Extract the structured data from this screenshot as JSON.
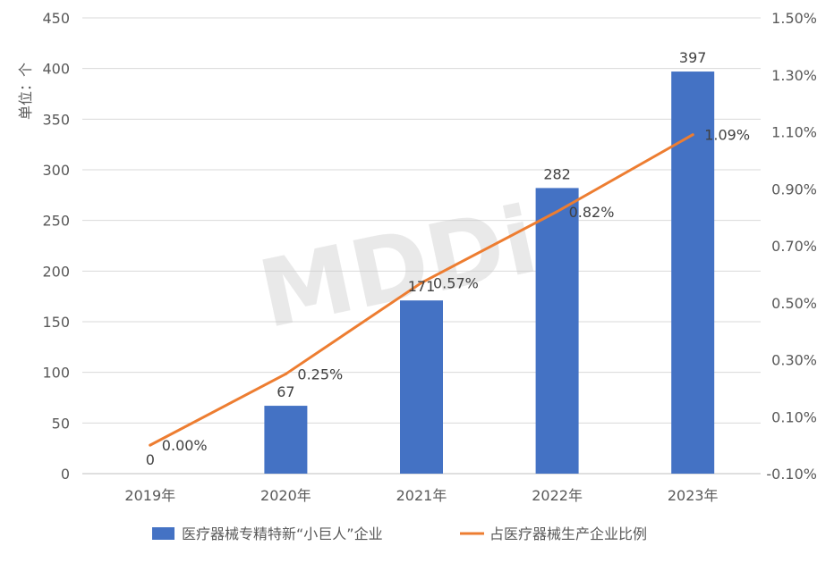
{
  "chart_data": {
    "type": "bar",
    "categories": [
      "2019年",
      "2020年",
      "2021年",
      "2022年",
      "2023年"
    ],
    "series": [
      {
        "name": "医疗器械专精特新“小巨人”企业",
        "kind": "bar",
        "axis": "left",
        "color": "#4472C4",
        "values": [
          0,
          67,
          171,
          282,
          397
        ],
        "labels": [
          "0",
          "67",
          "171",
          "282",
          "397"
        ]
      },
      {
        "name": "占医疗器械生产企业比例",
        "kind": "line",
        "axis": "right",
        "color": "#ED7D31",
        "values": [
          0.0,
          0.25,
          0.57,
          0.82,
          1.09
        ],
        "labels": [
          "0.00%",
          "0.25%",
          "0.57%",
          "0.82%",
          "1.09%"
        ]
      }
    ],
    "ylabel": "单位：个",
    "ylim": [
      0,
      450
    ],
    "yticks": [
      "0",
      "50",
      "100",
      "150",
      "200",
      "250",
      "300",
      "350",
      "400",
      "450"
    ],
    "y2lim": [
      -0.1,
      1.5
    ],
    "y2ticks": [
      "-0.10%",
      "0.10%",
      "0.30%",
      "0.50%",
      "0.70%",
      "0.90%",
      "1.10%",
      "1.30%",
      "1.50%"
    ],
    "grid": true,
    "legend": "bottom",
    "watermark": "MDDi"
  }
}
